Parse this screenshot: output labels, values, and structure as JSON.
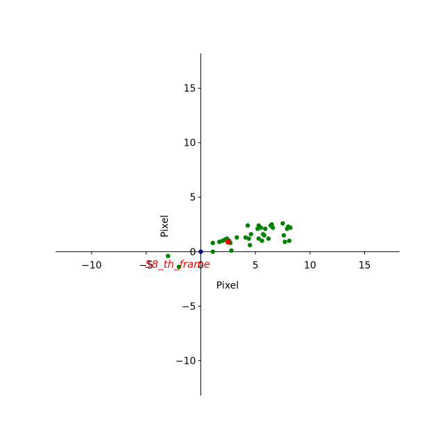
{
  "chart_data": {
    "type": "scatter",
    "title": "",
    "xlabel": "Pixel",
    "ylabel": "Pixel",
    "xlim": [
      -13.3,
      18.2
    ],
    "ylim": [
      -13.2,
      18.2
    ],
    "x_ticks": [
      -10,
      -5,
      0,
      5,
      10,
      15
    ],
    "y_ticks": [
      -10,
      -5,
      0,
      5,
      10,
      15
    ],
    "x_tick_labels": [
      "−10",
      "−5",
      "0",
      "5",
      "10",
      "15"
    ],
    "y_tick_labels": [
      "−10",
      "−5",
      "0",
      "5",
      "10",
      "15"
    ],
    "annotation": "58_th_frame",
    "grid": false,
    "spines": "centered",
    "series": [
      {
        "name": "points",
        "color": "#008000",
        "x": [
          1.1,
          1.1,
          1.7,
          2.0,
          2.2,
          2.4,
          2.6,
          2.7,
          2.8,
          3.3,
          4.1,
          4.3,
          4.4,
          4.5,
          4.6,
          5.2,
          5.3,
          5.3,
          5.5,
          5.6,
          5.7,
          5.8,
          5.9,
          6.2,
          6.4,
          6.5,
          6.6,
          7.5,
          7.6,
          7.7,
          7.9,
          8.0,
          8.1,
          8.2,
          -3.0,
          -2.0
        ],
        "y": [
          0.8,
          0.0,
          0.9,
          1.0,
          1.1,
          1.2,
          1.0,
          0.8,
          0.1,
          1.3,
          1.3,
          2.4,
          1.2,
          0.6,
          1.6,
          2.1,
          1.2,
          2.4,
          2.2,
          1.0,
          1.6,
          1.5,
          2.1,
          1.2,
          2.4,
          2.5,
          2.2,
          2.6,
          1.5,
          0.9,
          2.1,
          2.3,
          1.0,
          2.2,
          -0.4,
          -1.4
        ]
      },
      {
        "name": "current",
        "color": "#ff0000",
        "x": [
          2.5
        ],
        "y": [
          0.9
        ]
      },
      {
        "name": "origin",
        "color": "#00008b",
        "x": [
          0
        ],
        "y": [
          0
        ]
      }
    ]
  }
}
